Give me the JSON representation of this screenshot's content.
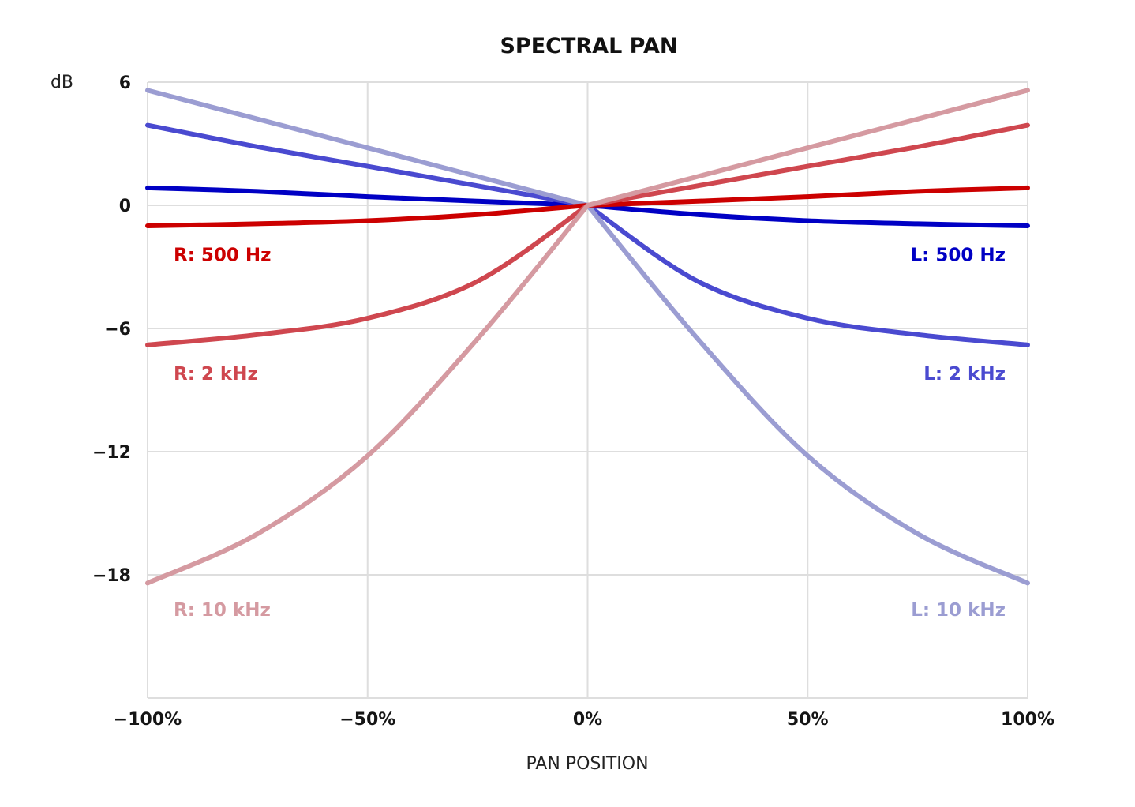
{
  "chart_data": {
    "type": "line",
    "title": "SPECTRAL PAN",
    "ylabel": "dB",
    "xlabel": "PAN POSITION",
    "xlim": [
      -100,
      100
    ],
    "ylim": [
      -24,
      6
    ],
    "x_ticks": [
      -100,
      -50,
      0,
      50,
      100
    ],
    "x_tick_labels": [
      "−100%",
      "−50%",
      "0%",
      "50%",
      "100%"
    ],
    "y_ticks": [
      6,
      0,
      -6,
      -12,
      -18
    ],
    "y_tick_labels": [
      "6",
      "0",
      "−6",
      "−12",
      "−18"
    ],
    "grid": true,
    "legend": "direct labels",
    "x": [
      -100,
      -75,
      -50,
      -25,
      0,
      25,
      50,
      75,
      100
    ],
    "series": [
      {
        "name": "R: 500 Hz",
        "color": "#cc0000",
        "values": [
          -1.0,
          -0.9,
          -0.75,
          -0.45,
          0,
          0.2,
          0.42,
          0.68,
          0.85
        ]
      },
      {
        "name": "R: 2 kHz",
        "color": "#cf474f",
        "values": [
          -6.8,
          -6.3,
          -5.5,
          -3.7,
          0,
          0.95,
          1.9,
          2.85,
          3.9
        ]
      },
      {
        "name": "R: 10 kHz",
        "color": "#d59aa1",
        "values": [
          -18.4,
          -16.0,
          -12.2,
          -6.5,
          0,
          1.4,
          2.8,
          4.2,
          5.6
        ]
      },
      {
        "name": "L: 500 Hz",
        "color": "#0000c4",
        "values": [
          0.85,
          0.68,
          0.42,
          0.2,
          0,
          -0.45,
          -0.75,
          -0.9,
          -1.0
        ]
      },
      {
        "name": "L: 2 kHz",
        "color": "#4a4ad0",
        "values": [
          3.9,
          2.85,
          1.9,
          0.95,
          0,
          -3.7,
          -5.5,
          -6.3,
          -6.8
        ]
      },
      {
        "name": "L: 10 kHz",
        "color": "#9b9dd2",
        "values": [
          5.6,
          4.2,
          2.8,
          1.4,
          0,
          -6.5,
          -12.2,
          -16.0,
          -18.4
        ]
      }
    ],
    "annotations": [
      {
        "text": "R: 500 Hz",
        "color": "#cc0000",
        "side": "left",
        "y": -2.4
      },
      {
        "text": "L: 500 Hz",
        "color": "#0000c4",
        "side": "right",
        "y": -2.4
      },
      {
        "text": "R: 2 kHz",
        "color": "#cf474f",
        "side": "left",
        "y": -8.2
      },
      {
        "text": "L: 2 kHz",
        "color": "#4a4ad0",
        "side": "right",
        "y": -8.2
      },
      {
        "text": "R: 10 kHz",
        "color": "#d59aa1",
        "side": "left",
        "y": -19.7
      },
      {
        "text": "L: 10 kHz",
        "color": "#9b9dd2",
        "side": "right",
        "y": -19.7
      }
    ]
  }
}
